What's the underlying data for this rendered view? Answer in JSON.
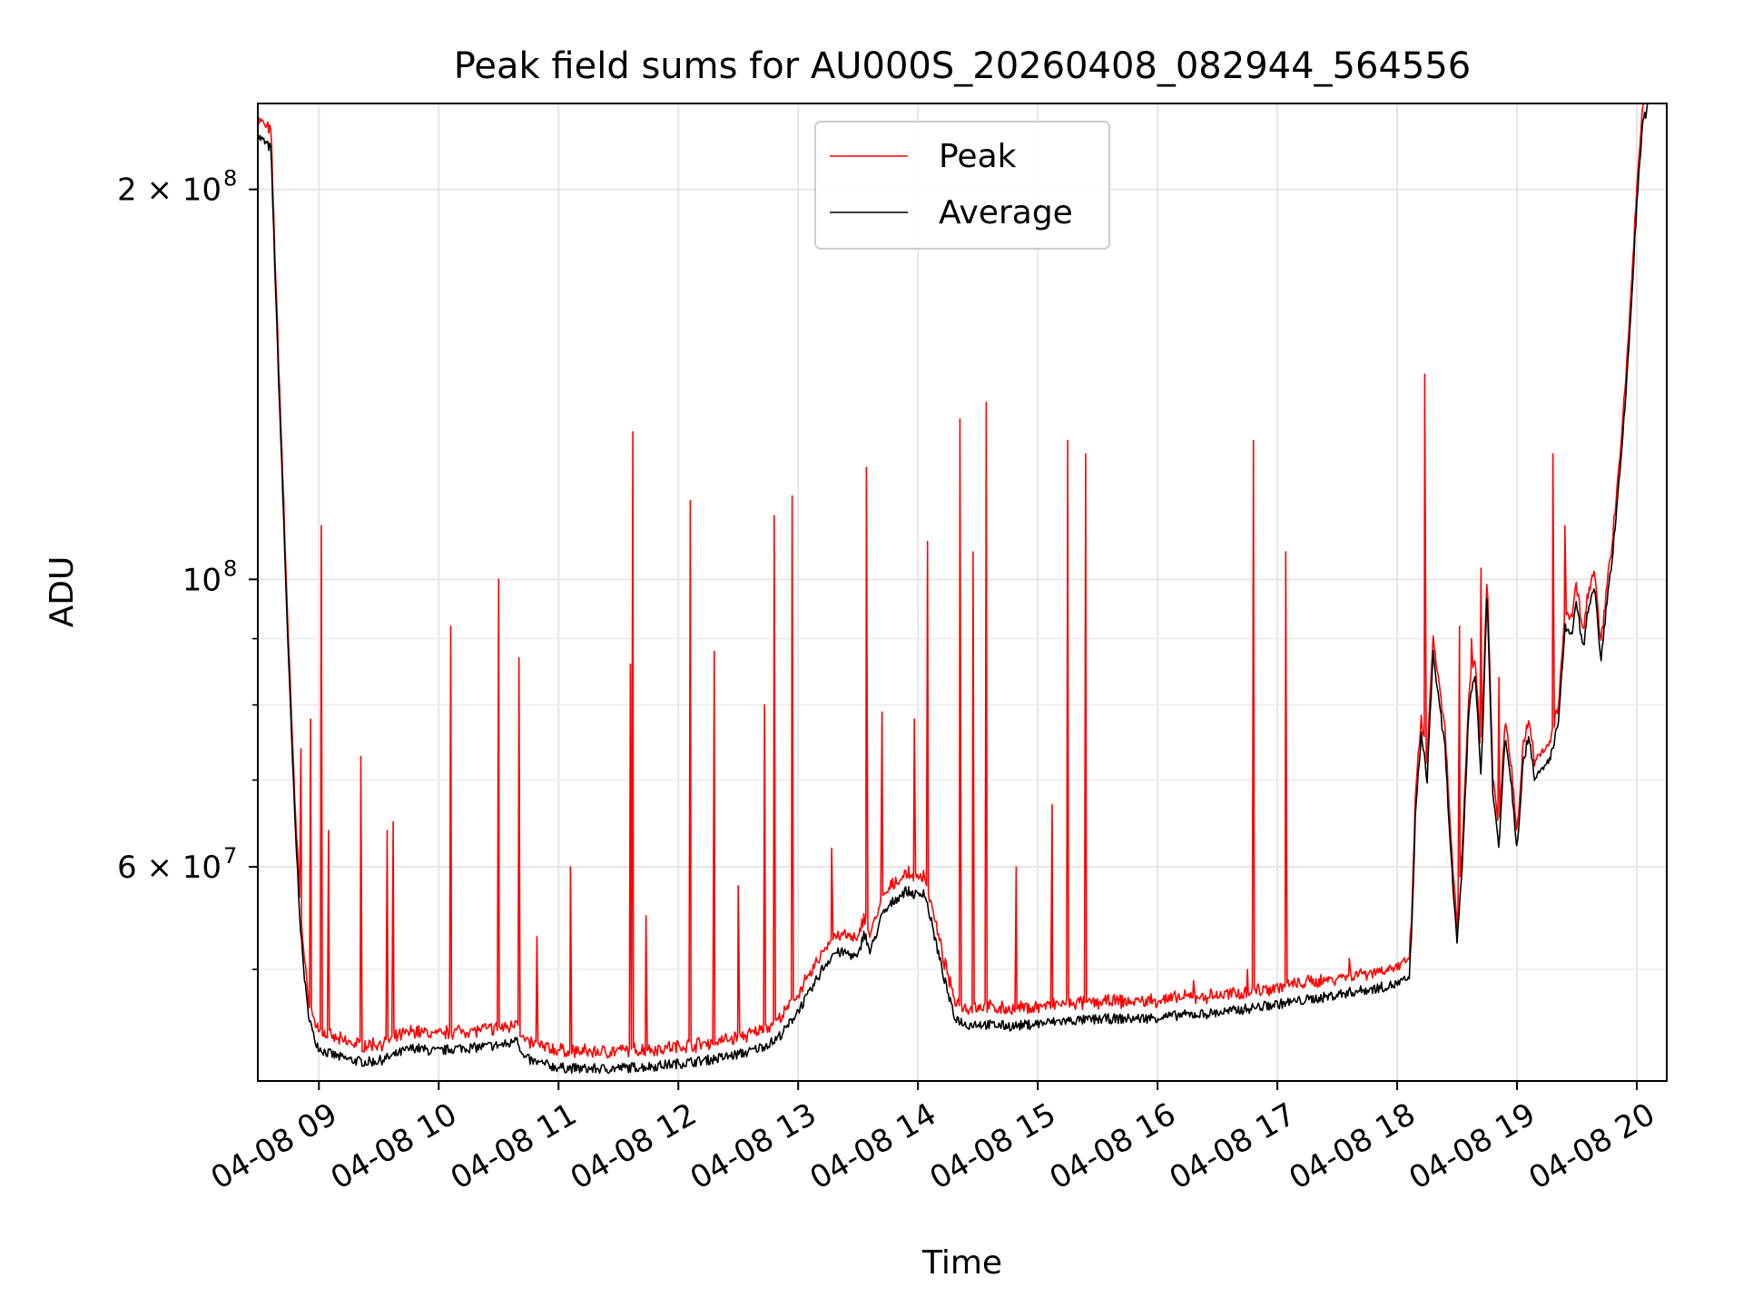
{
  "chart_data": {
    "type": "line",
    "title": "Peak field sums for AU000S_20260408_082944_564556",
    "xlabel": "Time",
    "ylabel": "ADU",
    "x_unit": "hours since 2026-04-08 00:00",
    "xlim": [
      8.49,
      20.25
    ],
    "ylim": [
      41000000,
      233000000
    ],
    "yscale": "log",
    "grid": true,
    "legend": {
      "position": "top-center",
      "entries": [
        "Peak",
        "Average"
      ]
    },
    "x_ticks": [
      {
        "value": 9,
        "label": "04-08 09"
      },
      {
        "value": 10,
        "label": "04-08 10"
      },
      {
        "value": 11,
        "label": "04-08 11"
      },
      {
        "value": 12,
        "label": "04-08 12"
      },
      {
        "value": 13,
        "label": "04-08 13"
      },
      {
        "value": 14,
        "label": "04-08 14"
      },
      {
        "value": 15,
        "label": "04-08 15"
      },
      {
        "value": 16,
        "label": "04-08 16"
      },
      {
        "value": 17,
        "label": "04-08 17"
      },
      {
        "value": 18,
        "label": "04-08 18"
      },
      {
        "value": 19,
        "label": "04-08 19"
      },
      {
        "value": 20,
        "label": "04-08 20"
      }
    ],
    "y_ticks": [
      {
        "value": 60000000,
        "label": "6 × 10",
        "exp": "7"
      },
      {
        "value": 100000000,
        "label": "10",
        "exp": "8"
      },
      {
        "value": 200000000,
        "label": "2 × 10",
        "exp": "8"
      }
    ],
    "y_minor_ticks": [
      50000000,
      70000000,
      80000000,
      90000000
    ],
    "series": [
      {
        "name": "Average",
        "color": "#000000",
        "x": [
          8.49,
          8.6,
          8.65,
          8.7,
          8.75,
          8.8,
          8.85,
          8.9,
          8.95,
          9.0,
          9.05,
          9.1,
          9.2,
          9.3,
          9.4,
          9.5,
          9.6,
          9.7,
          9.8,
          9.9,
          10.0,
          10.1,
          10.2,
          10.3,
          10.4,
          10.5,
          10.6,
          10.65,
          10.7,
          10.8,
          10.9,
          11.0,
          11.2,
          11.4,
          11.6,
          11.8,
          12.0,
          12.2,
          12.4,
          12.6,
          12.8,
          12.9,
          13.0,
          13.1,
          13.2,
          13.3,
          13.4,
          13.5,
          13.55,
          13.6,
          13.7,
          13.8,
          13.9,
          14.0,
          14.05,
          14.1,
          14.2,
          14.3,
          14.4,
          14.5,
          14.6,
          14.8,
          15.0,
          15.2,
          15.4,
          15.6,
          15.8,
          16.0,
          16.2,
          16.4,
          16.6,
          16.8,
          17.0,
          17.2,
          17.4,
          17.6,
          17.8,
          18.0,
          18.1,
          18.12,
          18.15,
          18.2,
          18.25,
          18.3,
          18.35,
          18.4,
          18.45,
          18.5,
          18.55,
          18.6,
          18.65,
          18.7,
          18.75,
          18.8,
          18.85,
          18.9,
          18.95,
          19.0,
          19.05,
          19.1,
          19.15,
          19.2,
          19.25,
          19.3,
          19.35,
          19.4,
          19.45,
          19.5,
          19.55,
          19.6,
          19.65,
          19.7,
          19.75,
          19.8,
          19.85,
          19.9,
          19.95,
          20.0,
          20.05,
          20.1
        ],
        "values": [
          220000000,
          215000000,
          155000000,
          115000000,
          85000000,
          65000000,
          53000000,
          47000000,
          44500000,
          43500000,
          43200000,
          43000000,
          42700000,
          42500000,
          42400000,
          42500000,
          42800000,
          43200000,
          43500000,
          43300000,
          43200000,
          43400000,
          43500000,
          43500000,
          43600000,
          43700000,
          43800000,
          44500000,
          42800000,
          42400000,
          42200000,
          42000000,
          41900000,
          41900000,
          42000000,
          42100000,
          42300000,
          42500000,
          42800000,
          43200000,
          44000000,
          45000000,
          46500000,
          48000000,
          50000000,
          51500000,
          51500000,
          51000000,
          53500000,
          51500000,
          55000000,
          56500000,
          57500000,
          57000000,
          57500000,
          55000000,
          50000000,
          46000000,
          45300000,
          45400000,
          45300000,
          45200000,
          45400000,
          45600000,
          45700000,
          45800000,
          45800000,
          45900000,
          46100000,
          46200000,
          46400000,
          46700000,
          47000000,
          47300000,
          47600000,
          48000000,
          48300000,
          48700000,
          49200000,
          53000000,
          65000000,
          76000000,
          70000000,
          88000000,
          80000000,
          74000000,
          61000000,
          52000000,
          62000000,
          80000000,
          85000000,
          70000000,
          98000000,
          68000000,
          62000000,
          76000000,
          70000000,
          62000000,
          72000000,
          76000000,
          70000000,
          71000000,
          72000000,
          74000000,
          78000000,
          92000000,
          90000000,
          96000000,
          88000000,
          96000000,
          98000000,
          86000000,
          96000000,
          105000000,
          118000000,
          135000000,
          160000000,
          195000000,
          225000000,
          233000000
        ]
      },
      {
        "name": "Peak",
        "color": "#ff0000",
        "offset_ratio": 1.025,
        "spikes": [
          {
            "x": 8.85,
            "value": 74000000
          },
          {
            "x": 8.93,
            "value": 78000000
          },
          {
            "x": 9.02,
            "value": 110000000
          },
          {
            "x": 9.08,
            "value": 64000000
          },
          {
            "x": 9.35,
            "value": 73000000
          },
          {
            "x": 9.57,
            "value": 64000000
          },
          {
            "x": 9.62,
            "value": 65000000
          },
          {
            "x": 10.1,
            "value": 92000000
          },
          {
            "x": 10.5,
            "value": 100000000
          },
          {
            "x": 10.67,
            "value": 87000000
          },
          {
            "x": 10.82,
            "value": 53000000
          },
          {
            "x": 11.1,
            "value": 60000000
          },
          {
            "x": 11.62,
            "value": 130000000
          },
          {
            "x": 11.6,
            "value": 86000000
          },
          {
            "x": 11.73,
            "value": 55000000
          },
          {
            "x": 12.1,
            "value": 115000000
          },
          {
            "x": 12.3,
            "value": 88000000
          },
          {
            "x": 12.5,
            "value": 58000000
          },
          {
            "x": 12.72,
            "value": 80000000
          },
          {
            "x": 12.8,
            "value": 112000000
          },
          {
            "x": 12.95,
            "value": 116000000
          },
          {
            "x": 13.28,
            "value": 62000000
          },
          {
            "x": 13.57,
            "value": 122000000
          },
          {
            "x": 13.7,
            "value": 79000000
          },
          {
            "x": 13.97,
            "value": 78000000
          },
          {
            "x": 14.08,
            "value": 107000000
          },
          {
            "x": 14.35,
            "value": 133000000
          },
          {
            "x": 14.46,
            "value": 105000000
          },
          {
            "x": 14.57,
            "value": 137000000
          },
          {
            "x": 14.82,
            "value": 60000000
          },
          {
            "x": 15.12,
            "value": 67000000
          },
          {
            "x": 15.25,
            "value": 128000000
          },
          {
            "x": 15.4,
            "value": 125000000
          },
          {
            "x": 16.3,
            "value": 49000000
          },
          {
            "x": 16.75,
            "value": 50000000
          },
          {
            "x": 16.8,
            "value": 128000000
          },
          {
            "x": 17.07,
            "value": 105000000
          },
          {
            "x": 17.6,
            "value": 51000000
          },
          {
            "x": 18.23,
            "value": 144000000
          },
          {
            "x": 18.52,
            "value": 92000000
          },
          {
            "x": 18.62,
            "value": 90000000
          },
          {
            "x": 18.7,
            "value": 102000000
          },
          {
            "x": 18.85,
            "value": 84000000
          },
          {
            "x": 19.3,
            "value": 125000000
          },
          {
            "x": 19.4,
            "value": 110000000
          }
        ]
      }
    ]
  }
}
